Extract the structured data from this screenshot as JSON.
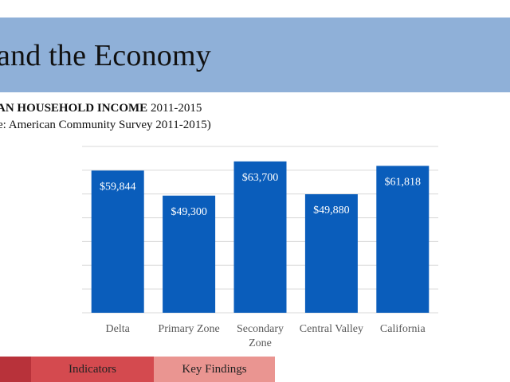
{
  "banner": {
    "title": "and the Economy"
  },
  "chart_data": {
    "type": "bar",
    "title_bold": "AN HOUSEHOLD INCOME",
    "title_rest": "2011-2015",
    "subtitle": "e: American Community Survey 2011-2015)",
    "categories": [
      [
        "Delta"
      ],
      [
        "Primary Zone"
      ],
      [
        "Secondary",
        "Zone"
      ],
      [
        "Central Valley"
      ],
      [
        "California"
      ]
    ],
    "values": [
      59844,
      49300,
      63700,
      49880,
      61818
    ],
    "data_labels": [
      "$59,844",
      "$49,300",
      "$63,700",
      "$49,880",
      "$61,818"
    ],
    "ylim": [
      0,
      70000
    ],
    "grid_step": 10000,
    "grid": true,
    "colors": {
      "bar": "#0a5dbb",
      "grid": "#d9d9d9",
      "label": "#ffffff",
      "tick": "#595959"
    }
  },
  "tabs": [
    {
      "label": ""
    },
    {
      "label": "Indicators"
    },
    {
      "label": "Key Findings"
    }
  ],
  "colors": {
    "banner": "#8fb0d8",
    "tab_home": "#b8323a",
    "tab_indicators": "#d44a4f",
    "tab_findings": "#ea9591"
  }
}
